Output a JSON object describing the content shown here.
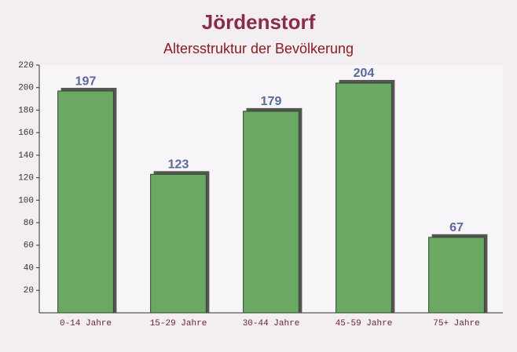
{
  "chart_data": {
    "type": "bar",
    "title": "Jördenstorf",
    "subtitle": "Altersstruktur der Bevölkerung",
    "categories": [
      "0-14 Jahre",
      "15-29 Jahre",
      "30-44 Jahre",
      "45-59 Jahre",
      "75+ Jahre"
    ],
    "values": [
      197,
      123,
      179,
      204,
      67
    ],
    "color": "#6aa864",
    "ylim": [
      0,
      220
    ],
    "yticks": [
      20,
      40,
      60,
      80,
      100,
      120,
      140,
      160,
      180,
      200,
      220
    ]
  }
}
